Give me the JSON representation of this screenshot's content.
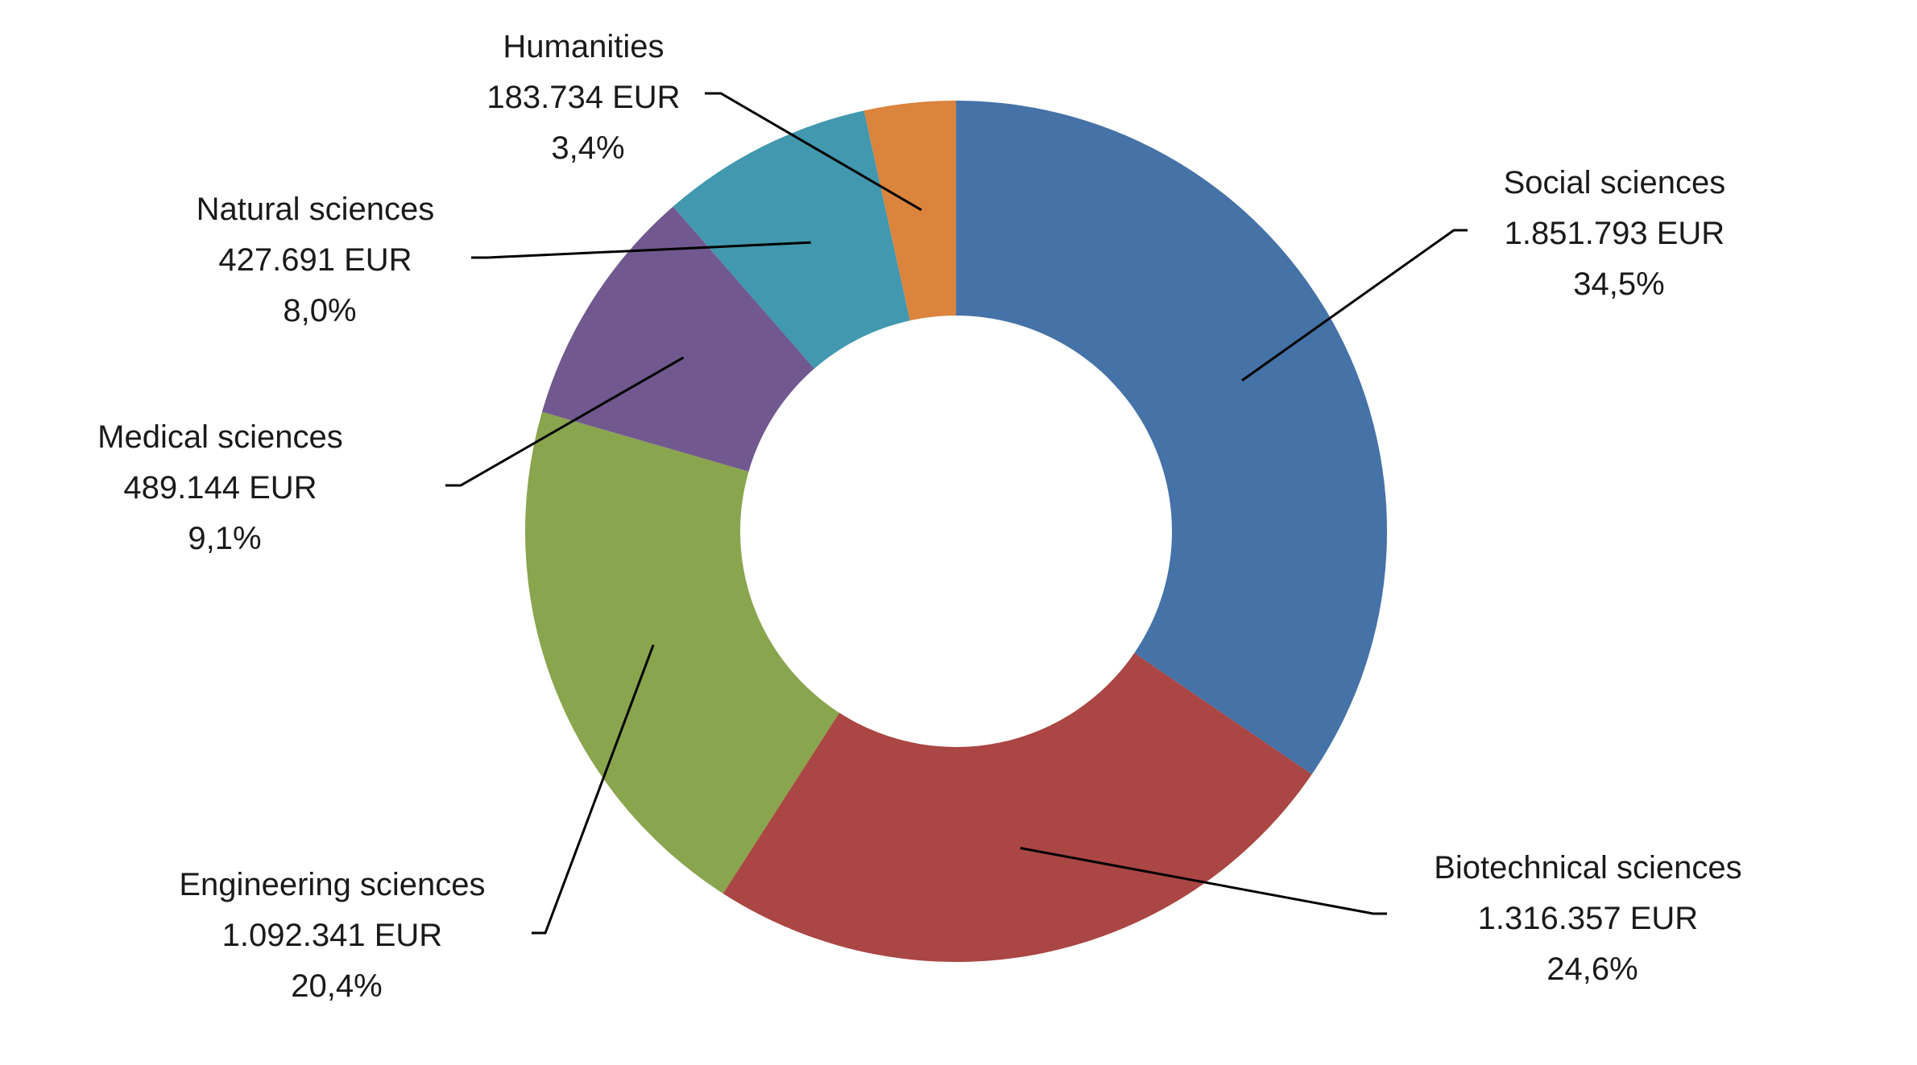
{
  "chart_data": {
    "type": "pie",
    "style": "donut",
    "currency": "EUR",
    "slices": [
      {
        "name": "Social sciences",
        "value": 1851793,
        "value_label": "1.851.793 EUR",
        "percent_label": "34,5%",
        "color": "#4572A7"
      },
      {
        "name": "Biotechnical sciences",
        "value": 1316357,
        "value_label": "1.316.357 EUR",
        "percent_label": "24,6%",
        "color": "#AA4643"
      },
      {
        "name": "Engineering sciences",
        "value": 1092341,
        "value_label": "1.092.341 EUR",
        "percent_label": "20,4%",
        "color": "#89A54E"
      },
      {
        "name": "Medical sciences",
        "value": 489144,
        "value_label": "489.144 EUR",
        "percent_label": "9,1%",
        "color": "#71588F"
      },
      {
        "name": "Natural sciences",
        "value": 427691,
        "value_label": "427.691 EUR",
        "percent_label": "8,0%",
        "color": "#4198AF"
      },
      {
        "name": "Humanities",
        "value": 183734,
        "value_label": "183.734 EUR",
        "percent_label": "3,4%",
        "color": "#DB843D"
      }
    ],
    "legend": "none",
    "data_labels": "outside with leader lines"
  }
}
